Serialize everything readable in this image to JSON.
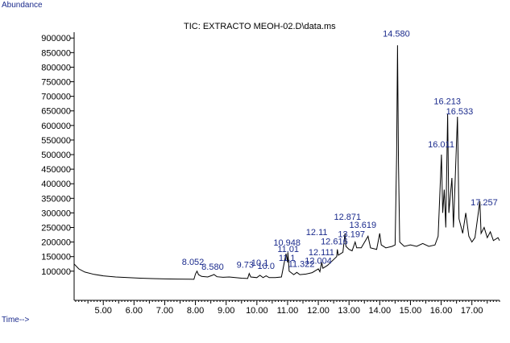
{
  "chart_data": {
    "type": "line",
    "title": "TIC: EXTRACTO MEOH-02.D\\data.ms",
    "ylabel": "Abundance",
    "xlabel": "Time-->",
    "xlim": [
      4.05,
      17.9
    ],
    "ylim": [
      0,
      920000
    ],
    "x_ticks": [
      "5.00",
      "6.00",
      "7.00",
      "8.00",
      "9.00",
      "10.00",
      "11.00",
      "12.00",
      "13.00",
      "14.00",
      "15.00",
      "16.00",
      "17.00"
    ],
    "x_tick_values": [
      5,
      6,
      7,
      8,
      9,
      10,
      11,
      12,
      13,
      14,
      15,
      16,
      17
    ],
    "y_ticks": [
      "100000",
      "150000",
      "200000",
      "250000",
      "300000",
      "350000",
      "400000",
      "450000",
      "500000",
      "550000",
      "600000",
      "650000",
      "700000",
      "750000",
      "800000",
      "850000",
      "900000"
    ],
    "y_tick_values": [
      100000,
      150000,
      200000,
      250000,
      300000,
      350000,
      400000,
      450000,
      500000,
      550000,
      600000,
      650000,
      700000,
      750000,
      800000,
      850000,
      900000
    ],
    "peak_labels": [
      {
        "text": "8.052",
        "rt": 7.92,
        "y": 113000
      },
      {
        "text": "8.580",
        "rt": 8.56,
        "y": 97000
      },
      {
        "text": "9.73",
        "rt": 9.62,
        "y": 103000
      },
      {
        "text": "10.1",
        "rt": 10.1,
        "y": 110000
      },
      {
        "text": "10.0",
        "rt": 10.3,
        "y": 100000
      },
      {
        "text": "10.948",
        "rt": 10.98,
        "y": 180000
      },
      {
        "text": "11.01",
        "rt": 11.02,
        "y": 158000
      },
      {
        "text": "11.1",
        "rt": 10.98,
        "y": 127000
      },
      {
        "text": "11.322",
        "rt": 11.45,
        "y": 106000
      },
      {
        "text": "12.004",
        "rt": 12.0,
        "y": 118000
      },
      {
        "text": "12.111",
        "rt": 12.1,
        "y": 147000
      },
      {
        "text": "12.11",
        "rt": 11.95,
        "y": 216000
      },
      {
        "text": "12.616",
        "rt": 12.52,
        "y": 184000
      },
      {
        "text": "12.871",
        "rt": 12.95,
        "y": 268000
      },
      {
        "text": "13.197",
        "rt": 13.08,
        "y": 209000
      },
      {
        "text": "13.619",
        "rt": 13.45,
        "y": 240000
      },
      {
        "text": "14.580",
        "rt": 14.54,
        "y": 896000
      },
      {
        "text": "16.011",
        "rt": 16.0,
        "y": 517000
      },
      {
        "text": "16.213",
        "rt": 16.2,
        "y": 665000
      },
      {
        "text": "16.533",
        "rt": 16.6,
        "y": 630000
      },
      {
        "text": "17.257",
        "rt": 17.4,
        "y": 318000
      }
    ],
    "series": [
      {
        "values": [
          [
            4.05,
            125000
          ],
          [
            4.2,
            108000
          ],
          [
            4.4,
            97000
          ],
          [
            4.7,
            89000
          ],
          [
            5.0,
            84000
          ],
          [
            5.4,
            80000
          ],
          [
            5.8,
            78000
          ],
          [
            6.2,
            76000
          ],
          [
            6.6,
            74500
          ],
          [
            7.0,
            73500
          ],
          [
            7.4,
            73000
          ],
          [
            7.8,
            72500
          ],
          [
            7.95,
            72000
          ],
          [
            8.0,
            90000
          ],
          [
            8.05,
            100000
          ],
          [
            8.1,
            88000
          ],
          [
            8.2,
            82000
          ],
          [
            8.4,
            80000
          ],
          [
            8.55,
            86000
          ],
          [
            8.6,
            89000
          ],
          [
            8.7,
            81000
          ],
          [
            8.9,
            79000
          ],
          [
            9.1,
            80000
          ],
          [
            9.3,
            78000
          ],
          [
            9.5,
            76000
          ],
          [
            9.7,
            75000
          ],
          [
            9.75,
            92000
          ],
          [
            9.8,
            80000
          ],
          [
            10.0,
            78000
          ],
          [
            10.1,
            86000
          ],
          [
            10.2,
            78000
          ],
          [
            10.3,
            84000
          ],
          [
            10.4,
            78000
          ],
          [
            10.6,
            78000
          ],
          [
            10.8,
            80000
          ],
          [
            10.95,
            160000
          ],
          [
            11.0,
            130000
          ],
          [
            11.01,
            165000
          ],
          [
            11.05,
            100000
          ],
          [
            11.2,
            88000
          ],
          [
            11.3,
            96000
          ],
          [
            11.4,
            88000
          ],
          [
            11.6,
            90000
          ],
          [
            11.8,
            95000
          ],
          [
            12.0,
            108000
          ],
          [
            12.05,
            98000
          ],
          [
            12.11,
            130000
          ],
          [
            12.15,
            110000
          ],
          [
            12.3,
            120000
          ],
          [
            12.5,
            140000
          ],
          [
            12.6,
            150000
          ],
          [
            12.62,
            175000
          ],
          [
            12.65,
            155000
          ],
          [
            12.8,
            165000
          ],
          [
            12.87,
            230000
          ],
          [
            12.9,
            185000
          ],
          [
            13.0,
            175000
          ],
          [
            13.1,
            170000
          ],
          [
            13.2,
            200000
          ],
          [
            13.25,
            180000
          ],
          [
            13.4,
            180000
          ],
          [
            13.62,
            220000
          ],
          [
            13.7,
            180000
          ],
          [
            13.9,
            175000
          ],
          [
            14.0,
            230000
          ],
          [
            14.05,
            190000
          ],
          [
            14.2,
            180000
          ],
          [
            14.4,
            185000
          ],
          [
            14.5,
            190000
          ],
          [
            14.55,
            500000
          ],
          [
            14.58,
            875000
          ],
          [
            14.61,
            470000
          ],
          [
            14.65,
            200000
          ],
          [
            14.8,
            185000
          ],
          [
            15.0,
            190000
          ],
          [
            15.2,
            185000
          ],
          [
            15.4,
            195000
          ],
          [
            15.6,
            185000
          ],
          [
            15.8,
            190000
          ],
          [
            15.9,
            220000
          ],
          [
            16.01,
            500000
          ],
          [
            16.05,
            300000
          ],
          [
            16.1,
            380000
          ],
          [
            16.15,
            250000
          ],
          [
            16.21,
            640000
          ],
          [
            16.25,
            300000
          ],
          [
            16.35,
            420000
          ],
          [
            16.4,
            250000
          ],
          [
            16.53,
            630000
          ],
          [
            16.58,
            280000
          ],
          [
            16.7,
            230000
          ],
          [
            16.8,
            300000
          ],
          [
            16.9,
            220000
          ],
          [
            17.0,
            200000
          ],
          [
            17.1,
            215000
          ],
          [
            17.26,
            340000
          ],
          [
            17.3,
            230000
          ],
          [
            17.4,
            250000
          ],
          [
            17.5,
            215000
          ],
          [
            17.6,
            235000
          ],
          [
            17.7,
            205000
          ],
          [
            17.85,
            215000
          ],
          [
            17.9,
            205000
          ]
        ]
      }
    ],
    "grid": false,
    "legend": "none"
  }
}
